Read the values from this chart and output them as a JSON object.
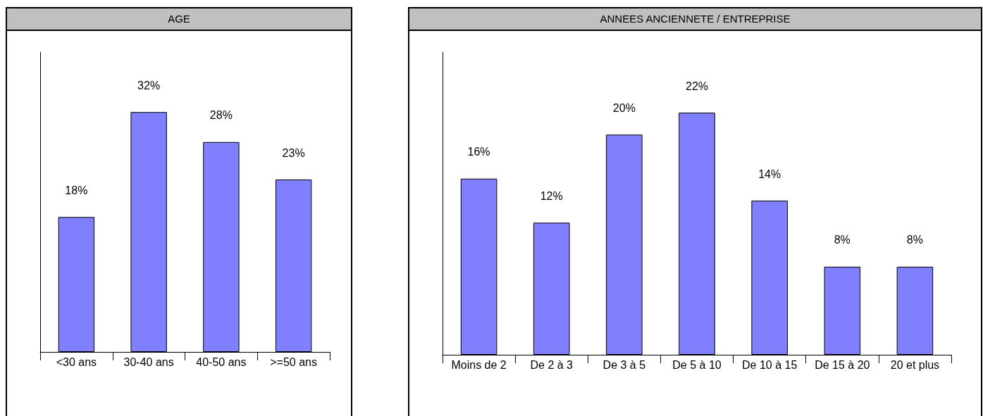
{
  "chart_data": [
    {
      "type": "bar",
      "title": "AGE",
      "categories": [
        "<30 ans",
        "30-40 ans",
        "40-50 ans",
        ">=50 ans"
      ],
      "values": [
        18,
        32,
        28,
        23
      ],
      "value_labels": [
        "18%",
        "32%",
        "28%",
        "23%"
      ],
      "color": "#8080ff",
      "tick_labels": "x"
    },
    {
      "type": "bar",
      "title": "ANNEES ANCIENNETE / ENTREPRISE",
      "categories": [
        "Moins de 2",
        "De 2 à 3",
        "De 3 à 5",
        "De 5 à 10",
        "De 10 à 15",
        "De 15 à 20",
        "20 et plus"
      ],
      "values": [
        16,
        12,
        20,
        22,
        14,
        8,
        8
      ],
      "value_labels": [
        "16%",
        "12%",
        "20%",
        "22%",
        "14%",
        "8%",
        "8%"
      ],
      "color": "#8080ff",
      "tick_labels": "x"
    }
  ]
}
